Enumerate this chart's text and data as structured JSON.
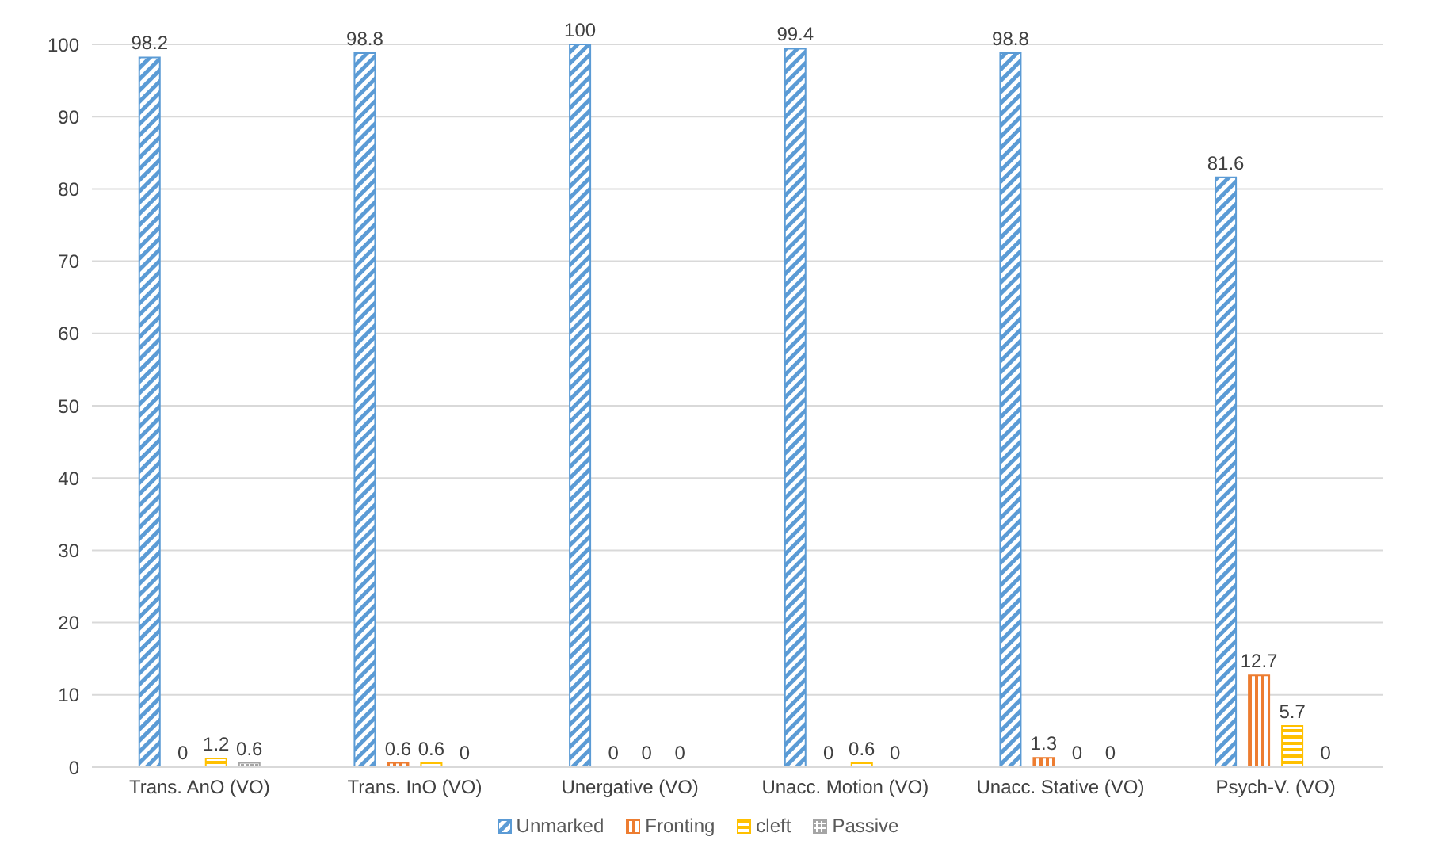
{
  "chart_data": {
    "type": "bar",
    "categories": [
      "Trans. AnO (VO)",
      "Trans. InO (VO)",
      "Unergative (VO)",
      "Unacc. Motion (VO)",
      "Unacc. Stative (VO)",
      "Psych-V. (VO)"
    ],
    "series": [
      {
        "name": "Unmarked",
        "color": "#5b9bd5",
        "values": [
          98.2,
          98.8,
          100,
          99.4,
          98.8,
          81.6
        ]
      },
      {
        "name": "Fronting",
        "color": "#ed7d31",
        "values": [
          0,
          0.6,
          0,
          0,
          1.3,
          12.7
        ]
      },
      {
        "name": "cleft",
        "color": "#ffc000",
        "values": [
          1.2,
          0.6,
          0,
          0.6,
          0,
          5.7
        ]
      },
      {
        "name": "Passive",
        "color": "#a5a5a5",
        "values": [
          0.6,
          0,
          0,
          0,
          0,
          0
        ]
      }
    ],
    "ylim": [
      0,
      100
    ],
    "yticks": [
      0,
      10,
      20,
      30,
      40,
      50,
      60,
      70,
      80,
      90,
      100
    ],
    "grid": "y",
    "legend": "bottom",
    "data_labels": true
  }
}
